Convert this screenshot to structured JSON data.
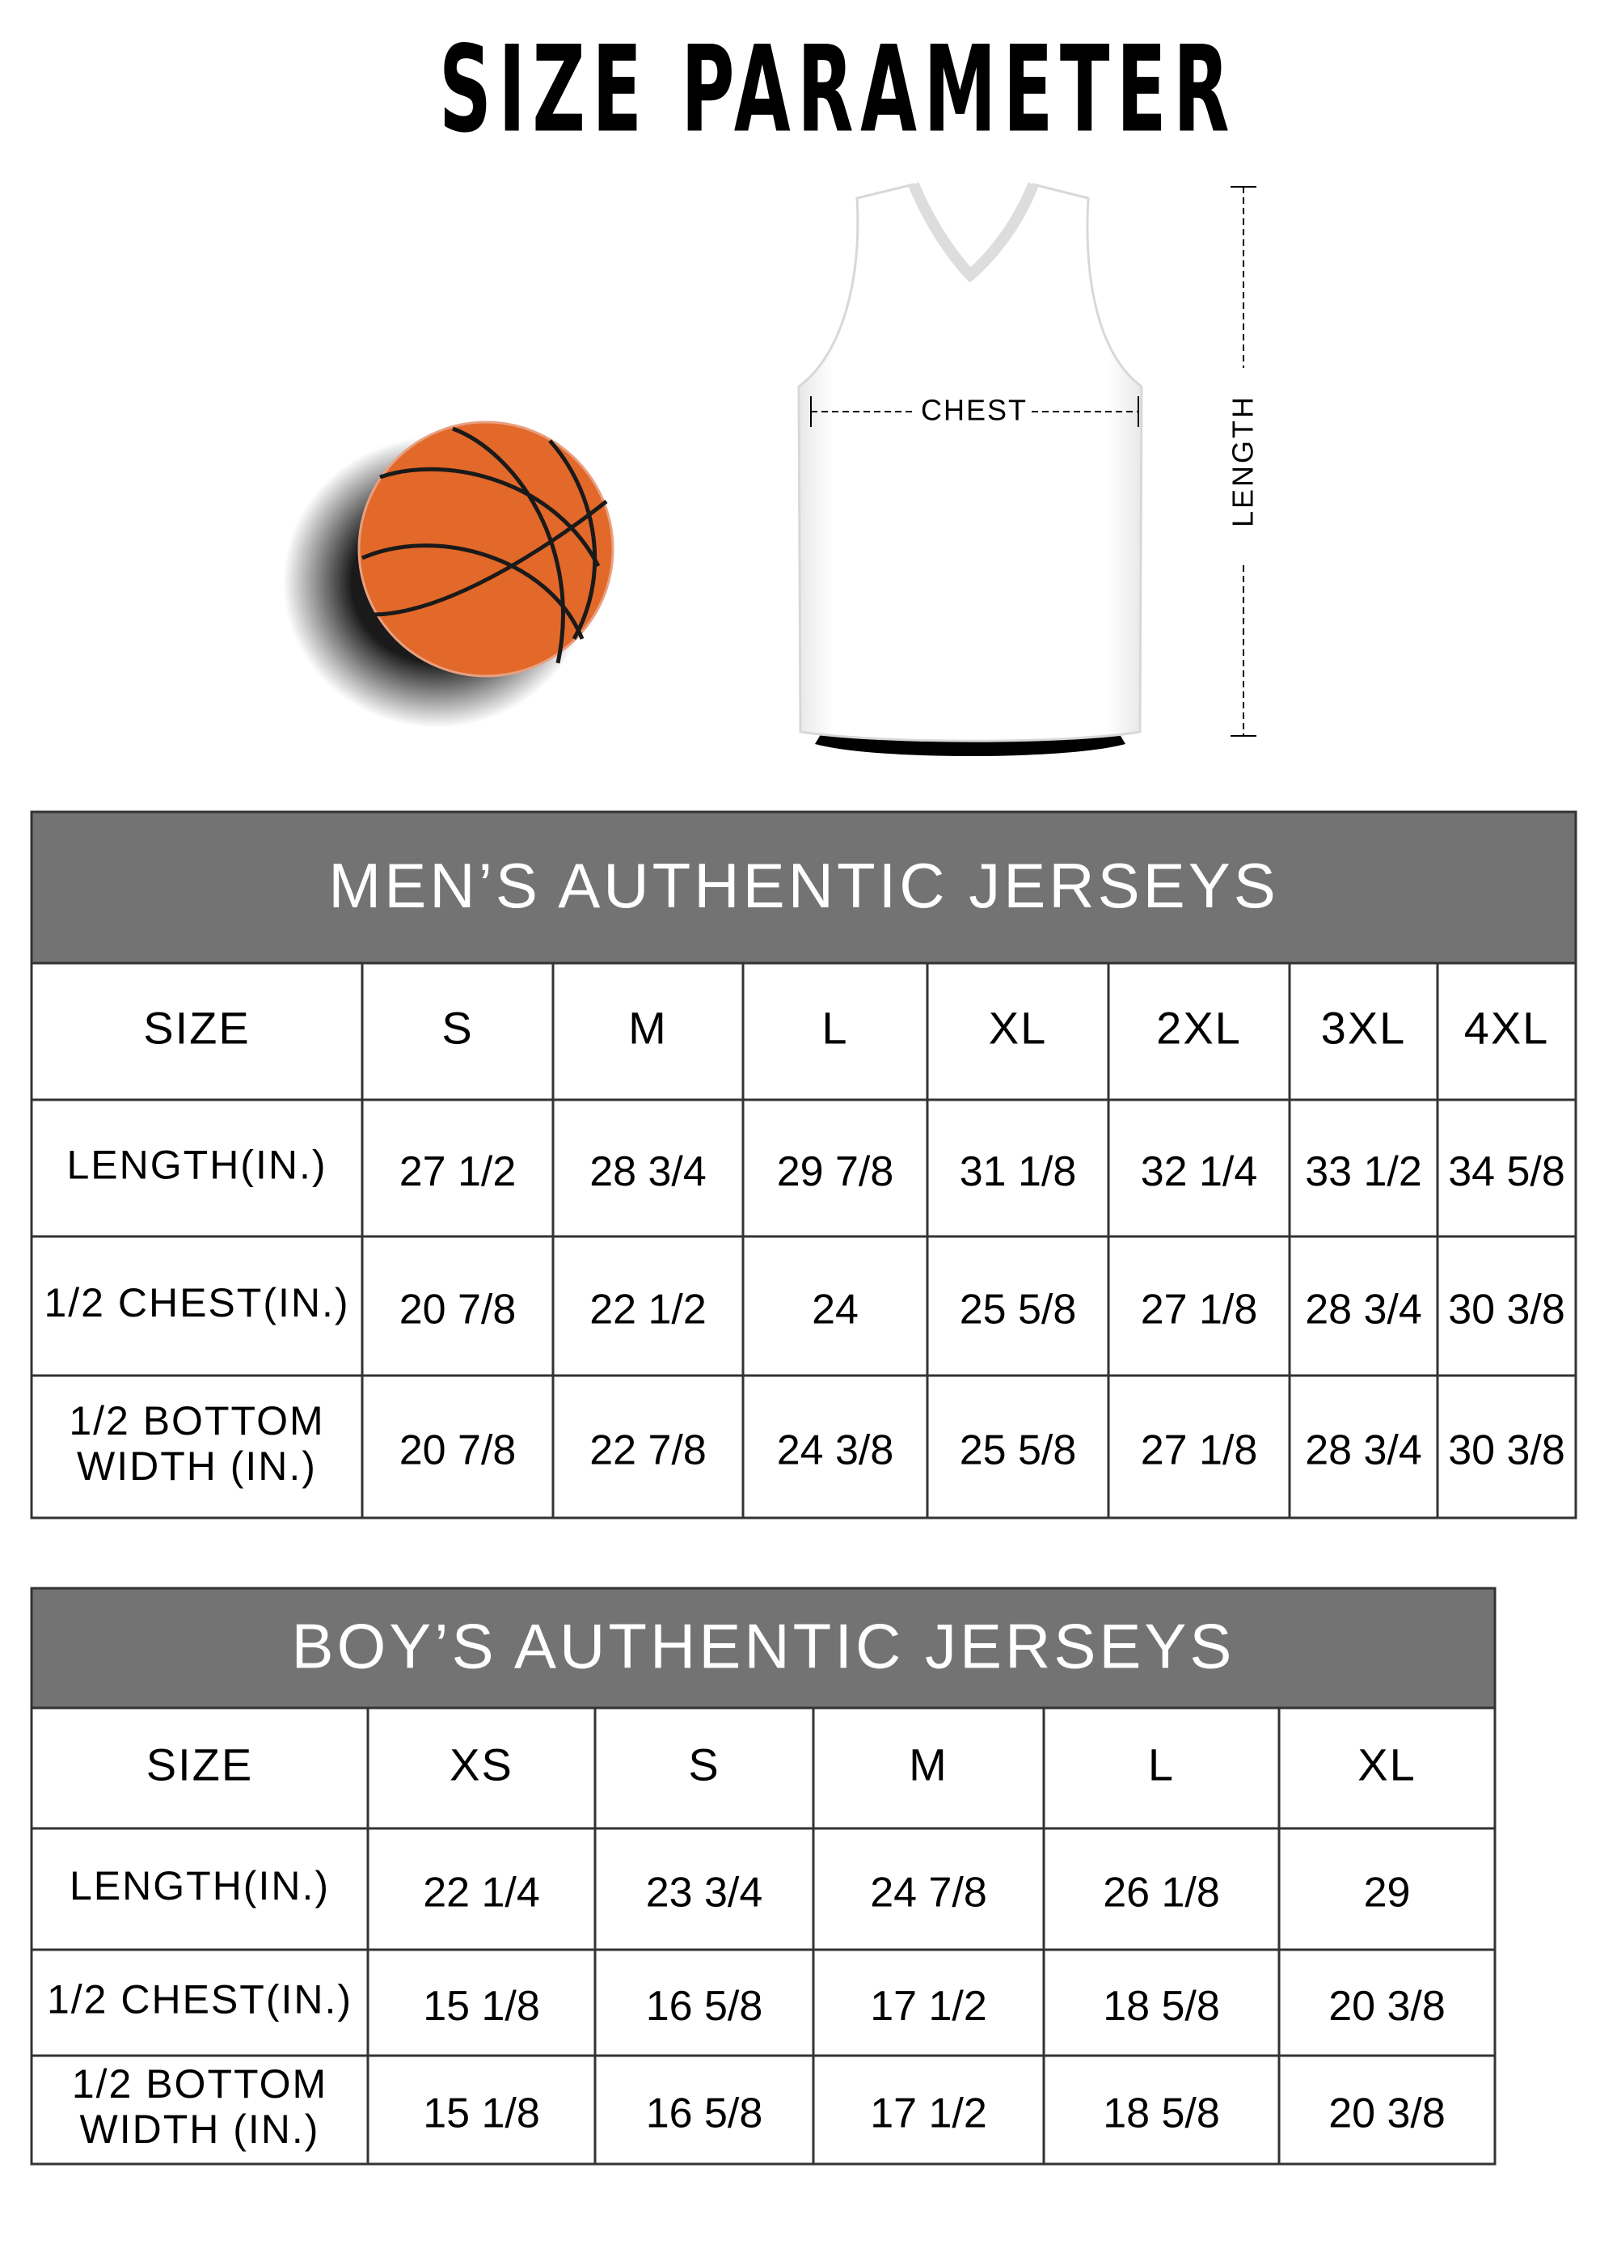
{
  "header": {
    "title": "SIZE PARAMETER"
  },
  "diagram": {
    "chest_label": "CHEST",
    "length_label": "LENGTH"
  },
  "men_table": {
    "title": "MEN’S AUTHENTIC JERSEYS",
    "header": [
      "SIZE",
      "S",
      "M",
      "L",
      "XL",
      "2XL",
      "3XL",
      "4XL"
    ],
    "rows": [
      [
        [
          "LENGTH(IN.)"
        ],
        "27 1/2",
        "28 3/4",
        "29 7/8",
        "31 1/8",
        "32 1/4",
        "33 1/2",
        "34 5/8"
      ],
      [
        [
          "1/2 CHEST(IN.)"
        ],
        "20 7/8",
        "22 1/2",
        "24",
        "25 5/8",
        "27 1/8",
        "28 3/4",
        "30 3/8"
      ],
      [
        [
          "1/2 BOTTOM",
          "WIDTH (IN.)"
        ],
        "20 7/8",
        "22 7/8",
        "24 3/8",
        "25 5/8",
        "27 1/8",
        "28 3/4",
        "30 3/8"
      ]
    ]
  },
  "boy_table": {
    "title": "BOY’S AUTHENTIC JERSEYS",
    "header": [
      "SIZE",
      "XS",
      "S",
      "M",
      "L",
      "XL"
    ],
    "rows": [
      [
        [
          "LENGTH(IN.)"
        ],
        "22 1/4",
        "23 3/4",
        "24 7/8",
        "26 1/8",
        "29"
      ],
      [
        [
          "1/2 CHEST(IN.)"
        ],
        "15 1/8",
        "16 5/8",
        "17 1/2",
        "18 5/8",
        "20 3/8"
      ],
      [
        [
          "1/2 BOTTOM",
          "WIDTH (IN.)"
        ],
        "15 1/8",
        "16 5/8",
        "17 1/2",
        "18 5/8",
        "20 3/8"
      ]
    ]
  }
}
